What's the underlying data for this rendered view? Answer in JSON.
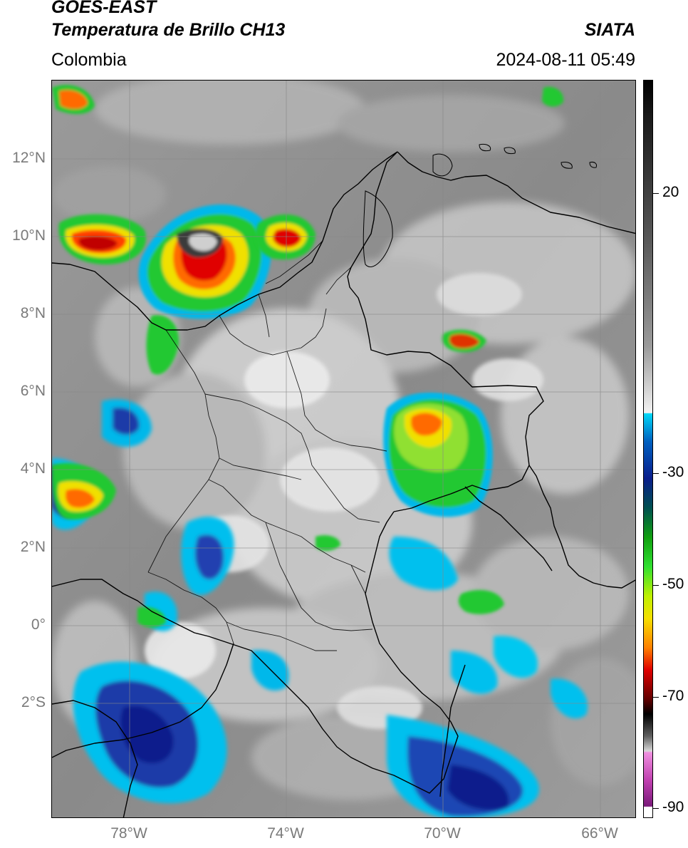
{
  "header": {
    "line1": "GOES-EAST",
    "line2": "Temperatura de Brillo CH13",
    "region": "Colombia",
    "org": "SIATA",
    "datetime": "2024-08-11 05:49"
  },
  "map": {
    "lat_labels": [
      "12°N",
      "10°N",
      "8°N",
      "6°N",
      "4°N",
      "2°N",
      "0°",
      "2°S"
    ],
    "lon_labels": [
      "78°W",
      "74°W",
      "70°W",
      "66°W"
    ],
    "lon_range": [
      -80,
      -65.1
    ],
    "lat_range": [
      -4.4,
      14.0
    ]
  },
  "colorbar": {
    "labels": [
      "20",
      "-30",
      "-50",
      "-70",
      "-90"
    ],
    "values": [
      20,
      -30,
      -50,
      -70,
      -90
    ],
    "range": [
      -92,
      38
    ],
    "colors": {
      "gray_warm": "#606060",
      "gray_light": "#e8e8e8",
      "cyan": "#00c8f0",
      "blue_dark": "#0a1e8c",
      "green": "#20d020",
      "yellow": "#f5e000",
      "orange": "#ff8000",
      "red": "#e00000",
      "dark_red": "#500000",
      "magenta": "#e060d0",
      "purple": "#8a1a8a"
    }
  }
}
